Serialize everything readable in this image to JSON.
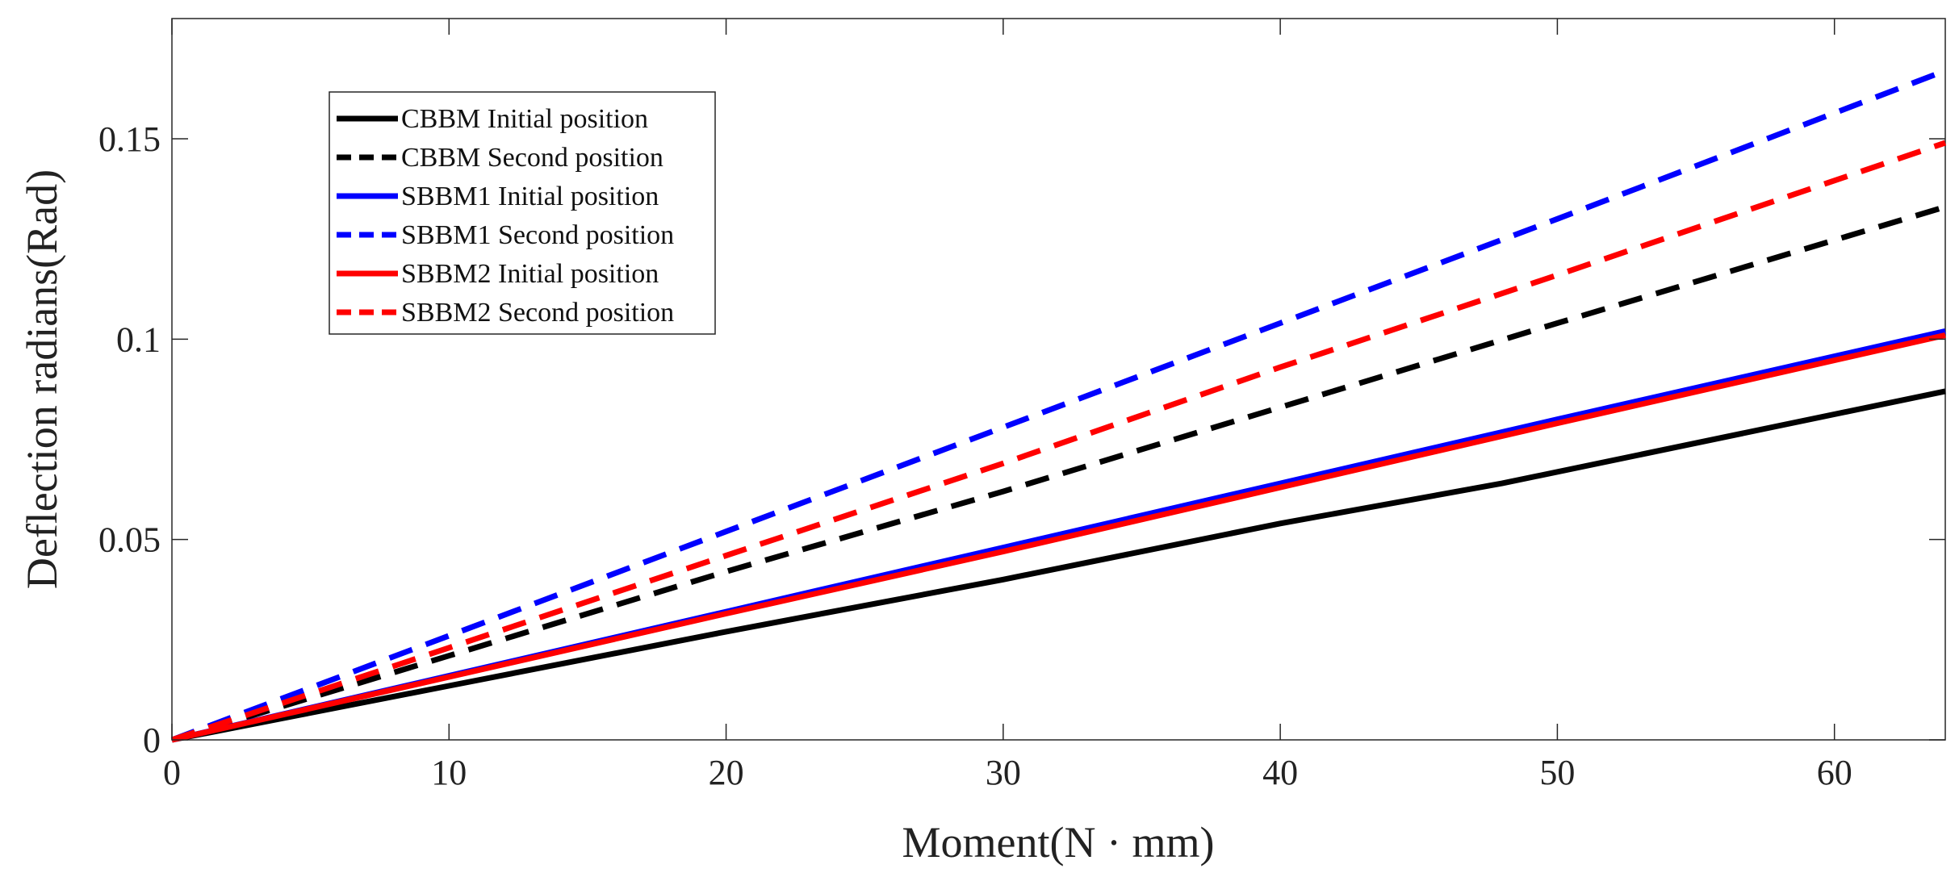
{
  "chart_data": {
    "type": "line",
    "title": "",
    "xlabel": "Moment(N · mm)",
    "ylabel": "Deflection radians(Rad)",
    "xlim": [
      0,
      64
    ],
    "ylim": [
      0,
      0.18
    ],
    "xticks": [
      0,
      10,
      20,
      30,
      40,
      50,
      60
    ],
    "xtick_labels": [
      "0",
      "10",
      "20",
      "30",
      "40",
      "50",
      "60"
    ],
    "yticks": [
      0,
      0.05,
      0.1,
      0.15
    ],
    "ytick_labels": [
      "0",
      "0.05",
      "0.1",
      "0.15"
    ],
    "grid": false,
    "legend_position": "top-left",
    "series": [
      {
        "name": "CBBM Initial position",
        "color": "#000000",
        "dash": "solid",
        "x": [
          0,
          10,
          20,
          30,
          40,
          48,
          64
        ],
        "y": [
          0,
          0.0135,
          0.027,
          0.04,
          0.054,
          0.064,
          0.087
        ]
      },
      {
        "name": "CBBM Second position",
        "color": "#000000",
        "dash": "dashed",
        "x": [
          0,
          10,
          20,
          30,
          40,
          50,
          64
        ],
        "y": [
          0,
          0.021,
          0.042,
          0.062,
          0.083,
          0.104,
          0.133
        ]
      },
      {
        "name": "SBBM1 Initial position",
        "color": "#0000ff",
        "dash": "solid",
        "x": [
          0,
          10,
          20,
          30,
          40,
          50,
          64
        ],
        "y": [
          0,
          0.016,
          0.032,
          0.048,
          0.064,
          0.08,
          0.102
        ]
      },
      {
        "name": "SBBM1 Second position",
        "color": "#0000ff",
        "dash": "dashed",
        "x": [
          0,
          10,
          20,
          30,
          40,
          50,
          64
        ],
        "y": [
          0,
          0.026,
          0.052,
          0.078,
          0.104,
          0.13,
          0.167
        ]
      },
      {
        "name": "SBBM2 Initial position",
        "color": "#ff0000",
        "dash": "solid",
        "x": [
          0,
          10,
          20,
          30,
          40,
          50,
          64
        ],
        "y": [
          0,
          0.0157,
          0.0315,
          0.047,
          0.063,
          0.079,
          0.101
        ]
      },
      {
        "name": "SBBM2 Second position",
        "color": "#ff0000",
        "dash": "dashed",
        "x": [
          0,
          10,
          20,
          30,
          40,
          50,
          64
        ],
        "y": [
          0,
          0.023,
          0.046,
          0.069,
          0.093,
          0.116,
          0.149
        ]
      }
    ]
  }
}
